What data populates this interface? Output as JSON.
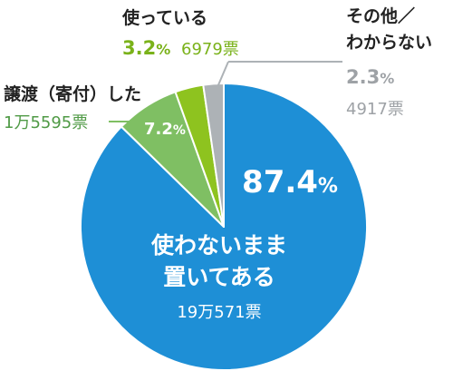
{
  "chart_data": {
    "type": "pie",
    "unit_votes": "票",
    "start_angle": "12 o'clock",
    "direction": "clockwise",
    "slices": [
      {
        "label_lines": [
          "使わないまま",
          "置いてある"
        ],
        "percent_num": "87.4",
        "percent_sign": "%",
        "votes_text": "19万571票",
        "value": 87.4,
        "color": "#1e8fd6",
        "label_color": "#ffffff",
        "votes_color": "#ffffff"
      },
      {
        "label_lines": [
          "譲渡（寄付）した"
        ],
        "percent_num": "7.2",
        "percent_sign": "%",
        "votes_text": "1万5595票",
        "value": 7.2,
        "color": "#7fbf63",
        "label_color": "#222222",
        "votes_color": "#4f9a45"
      },
      {
        "label_lines": [
          "使っている"
        ],
        "percent_num": "3.2",
        "percent_sign": "%",
        "votes_text": "6979票",
        "value": 3.2,
        "color": "#8ec31f",
        "label_color": "#222222",
        "votes_color": "#7ab21a"
      },
      {
        "label_lines": [
          "その他／",
          "わからない"
        ],
        "percent_num": "2.3",
        "percent_sign": "%",
        "votes_text": "4917票",
        "value": 2.3,
        "color": "#adb2b6",
        "label_color": "#222222",
        "votes_color": "#9ea2a6"
      }
    ]
  }
}
